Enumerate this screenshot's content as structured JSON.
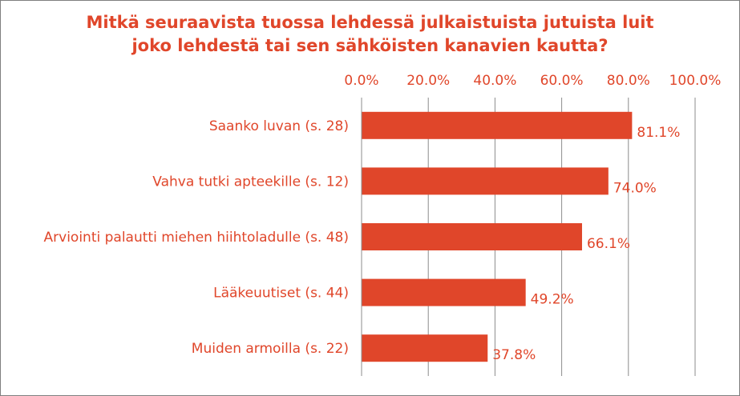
{
  "chart_data": {
    "type": "bar",
    "orientation": "horizontal",
    "title_lines": [
      "Mitkä seuraavista tuossa lehdessä julkaistuista jutuista luit",
      "joko lehdestä tai sen sähköisten kanavien kautta?"
    ],
    "categories": [
      "Saanko luvan (s. 28)",
      "Vahva tutki apteekille (s. 12)",
      "Arviointi palautti miehen hiihtoladulle (s. 48)",
      "Lääkeuutiset (s. 44)",
      "Muiden armoilla (s. 22)"
    ],
    "values": [
      81.1,
      74.0,
      66.1,
      49.2,
      37.8
    ],
    "value_labels": [
      "81.1%",
      "74.0%",
      "66.1%",
      "49.2%",
      "37.8%"
    ],
    "x_ticks": [
      "0.0%",
      "20.0%",
      "40.0%",
      "60.0%",
      "80.0%",
      "100.0%"
    ],
    "xlim": [
      0,
      100
    ],
    "x_axis_position": "top",
    "grid": true,
    "legend": "none",
    "colors": {
      "bar": "#e0462a",
      "text": "#e0462a",
      "grid": "#8c8c8c"
    }
  }
}
